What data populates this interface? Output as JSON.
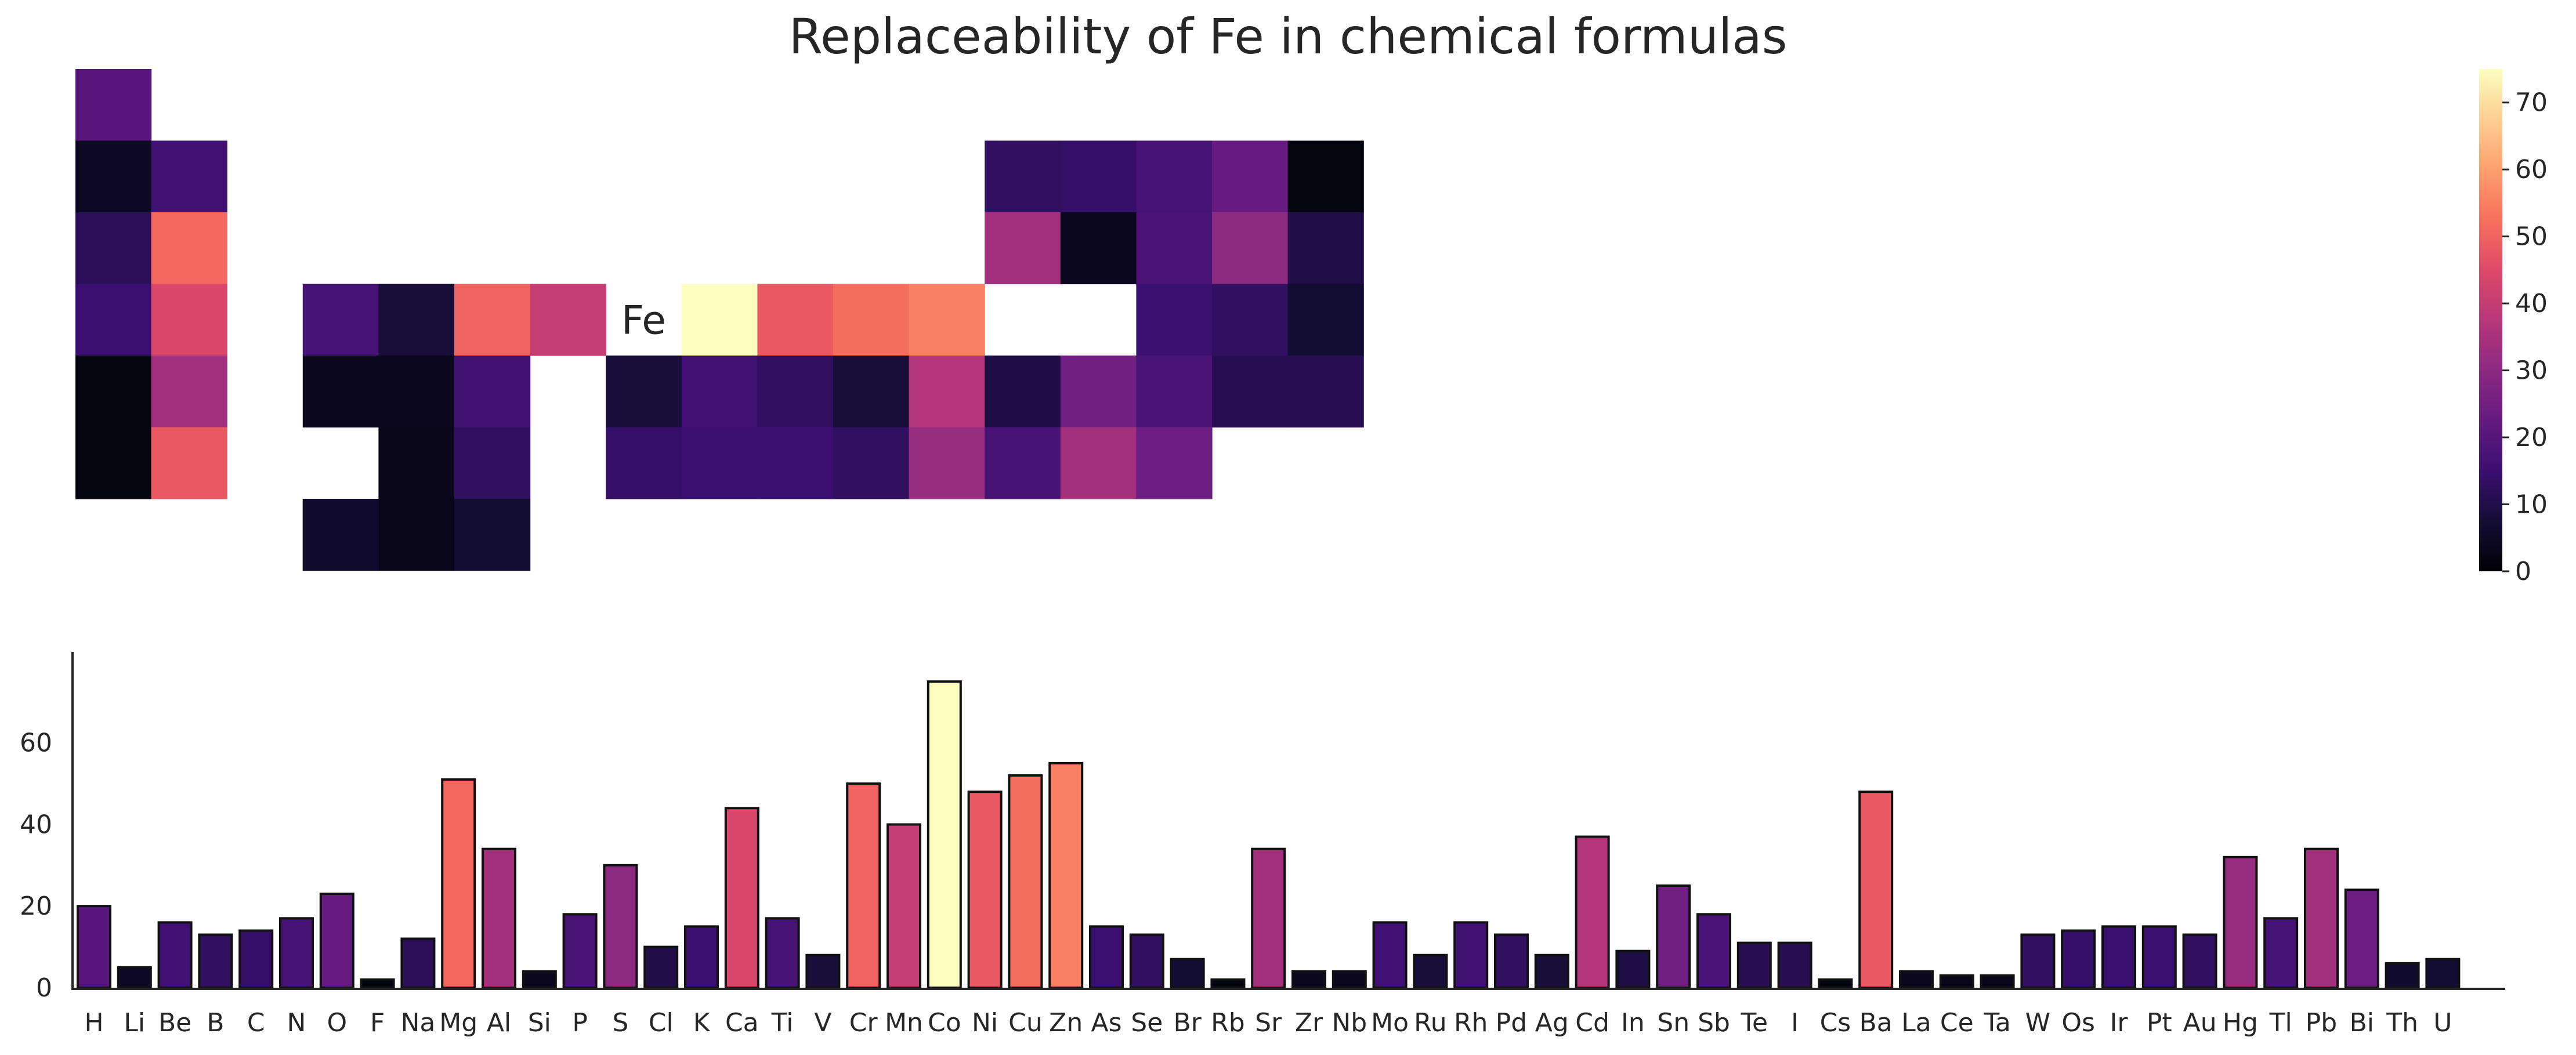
{
  "chart_data": [
    {
      "type": "heatmap",
      "title": "Replaceability of Fe in chemical formulas",
      "target_element": "Fe",
      "layout": "periodic-table",
      "colormap": "magma",
      "colorbar": {
        "min": 0,
        "max": 75,
        "ticks": [
          0,
          10,
          20,
          30,
          40,
          50,
          60,
          70
        ]
      },
      "cells": [
        {
          "element": "H",
          "period": 1,
          "group": 1,
          "value": 20
        },
        {
          "element": "Li",
          "period": 2,
          "group": 1,
          "value": 5
        },
        {
          "element": "Be",
          "period": 2,
          "group": 2,
          "value": 16
        },
        {
          "element": "B",
          "period": 2,
          "group": 13,
          "value": 13
        },
        {
          "element": "C",
          "period": 2,
          "group": 14,
          "value": 14
        },
        {
          "element": "N",
          "period": 2,
          "group": 15,
          "value": 17
        },
        {
          "element": "O",
          "period": 2,
          "group": 16,
          "value": 23
        },
        {
          "element": "F",
          "period": 2,
          "group": 17,
          "value": 2
        },
        {
          "element": "Na",
          "period": 3,
          "group": 1,
          "value": 12
        },
        {
          "element": "Mg",
          "period": 3,
          "group": 2,
          "value": 51
        },
        {
          "element": "Al",
          "period": 3,
          "group": 13,
          "value": 34
        },
        {
          "element": "Si",
          "period": 3,
          "group": 14,
          "value": 4
        },
        {
          "element": "P",
          "period": 3,
          "group": 15,
          "value": 18
        },
        {
          "element": "S",
          "period": 3,
          "group": 16,
          "value": 30
        },
        {
          "element": "Cl",
          "period": 3,
          "group": 17,
          "value": 10
        },
        {
          "element": "K",
          "period": 4,
          "group": 1,
          "value": 15
        },
        {
          "element": "Ca",
          "period": 4,
          "group": 2,
          "value": 44
        },
        {
          "element": "Ti",
          "period": 4,
          "group": 4,
          "value": 17
        },
        {
          "element": "V",
          "period": 4,
          "group": 5,
          "value": 8
        },
        {
          "element": "Cr",
          "period": 4,
          "group": 6,
          "value": 50
        },
        {
          "element": "Mn",
          "period": 4,
          "group": 7,
          "value": 40
        },
        {
          "element": "Co",
          "period": 4,
          "group": 9,
          "value": 75
        },
        {
          "element": "Ni",
          "period": 4,
          "group": 10,
          "value": 48
        },
        {
          "element": "Cu",
          "period": 4,
          "group": 11,
          "value": 52
        },
        {
          "element": "Zn",
          "period": 4,
          "group": 12,
          "value": 55
        },
        {
          "element": "As",
          "period": 4,
          "group": 15,
          "value": 15
        },
        {
          "element": "Se",
          "period": 4,
          "group": 16,
          "value": 13
        },
        {
          "element": "Br",
          "period": 4,
          "group": 17,
          "value": 7
        },
        {
          "element": "Rb",
          "period": 5,
          "group": 1,
          "value": 2
        },
        {
          "element": "Sr",
          "period": 5,
          "group": 2,
          "value": 34
        },
        {
          "element": "Zr",
          "period": 5,
          "group": 4,
          "value": 4
        },
        {
          "element": "Nb",
          "period": 5,
          "group": 5,
          "value": 4
        },
        {
          "element": "Mo",
          "period": 5,
          "group": 6,
          "value": 16
        },
        {
          "element": "Ru",
          "period": 5,
          "group": 8,
          "value": 8
        },
        {
          "element": "Rh",
          "period": 5,
          "group": 9,
          "value": 16
        },
        {
          "element": "Pd",
          "period": 5,
          "group": 10,
          "value": 13
        },
        {
          "element": "Ag",
          "period": 5,
          "group": 11,
          "value": 8
        },
        {
          "element": "Cd",
          "period": 5,
          "group": 12,
          "value": 37
        },
        {
          "element": "In",
          "period": 5,
          "group": 13,
          "value": 9
        },
        {
          "element": "Sn",
          "period": 5,
          "group": 14,
          "value": 25
        },
        {
          "element": "Sb",
          "period": 5,
          "group": 15,
          "value": 18
        },
        {
          "element": "Te",
          "period": 5,
          "group": 16,
          "value": 11
        },
        {
          "element": "I",
          "period": 5,
          "group": 17,
          "value": 11
        },
        {
          "element": "Cs",
          "period": 6,
          "group": 1,
          "value": 2
        },
        {
          "element": "Ba",
          "period": 6,
          "group": 2,
          "value": 48
        },
        {
          "element": "La",
          "period": 7,
          "group": 4,
          "value": 4
        },
        {
          "element": "Ce",
          "period": 7,
          "group": 5,
          "value": 3
        },
        {
          "element": "Ta",
          "period": 6,
          "group": 5,
          "value": 3
        },
        {
          "element": "W",
          "period": 6,
          "group": 6,
          "value": 13
        },
        {
          "element": "Os",
          "period": 6,
          "group": 8,
          "value": 14
        },
        {
          "element": "Ir",
          "period": 6,
          "group": 9,
          "value": 15
        },
        {
          "element": "Pt",
          "period": 6,
          "group": 10,
          "value": 15
        },
        {
          "element": "Au",
          "period": 6,
          "group": 11,
          "value": 13
        },
        {
          "element": "Hg",
          "period": 6,
          "group": 12,
          "value": 32
        },
        {
          "element": "Tl",
          "period": 6,
          "group": 13,
          "value": 17
        },
        {
          "element": "Pb",
          "period": 6,
          "group": 14,
          "value": 34
        },
        {
          "element": "Bi",
          "period": 6,
          "group": 15,
          "value": 24
        },
        {
          "element": "Th",
          "period": 7,
          "group": 4,
          "value": 6
        },
        {
          "element": "U",
          "period": 7,
          "group": 6,
          "value": 7
        }
      ]
    },
    {
      "type": "bar",
      "colormap": "magma",
      "categories": [
        "H",
        "Li",
        "Be",
        "B",
        "C",
        "N",
        "O",
        "F",
        "Na",
        "Mg",
        "Al",
        "Si",
        "P",
        "S",
        "Cl",
        "K",
        "Ca",
        "Ti",
        "V",
        "Cr",
        "Mn",
        "Co",
        "Ni",
        "Cu",
        "Zn",
        "As",
        "Se",
        "Br",
        "Rb",
        "Sr",
        "Zr",
        "Nb",
        "Mo",
        "Ru",
        "Rh",
        "Pd",
        "Ag",
        "Cd",
        "In",
        "Sn",
        "Sb",
        "Te",
        "I",
        "Cs",
        "Ba",
        "La",
        "Ce",
        "Ta",
        "W",
        "Os",
        "Ir",
        "Pt",
        "Au",
        "Hg",
        "Tl",
        "Pb",
        "Bi",
        "Th",
        "U"
      ],
      "values": [
        20,
        5,
        16,
        13,
        14,
        17,
        23,
        2,
        12,
        51,
        34,
        4,
        18,
        30,
        10,
        15,
        44,
        17,
        8,
        50,
        40,
        75,
        48,
        52,
        55,
        15,
        13,
        7,
        2,
        34,
        4,
        4,
        16,
        8,
        16,
        13,
        8,
        37,
        9,
        25,
        18,
        11,
        11,
        2,
        48,
        4,
        3,
        3,
        13,
        14,
        15,
        15,
        13,
        32,
        17,
        34,
        24,
        6,
        7
      ],
      "ylim": [
        0,
        78
      ],
      "yticks": [
        0,
        20,
        40,
        60
      ]
    }
  ]
}
